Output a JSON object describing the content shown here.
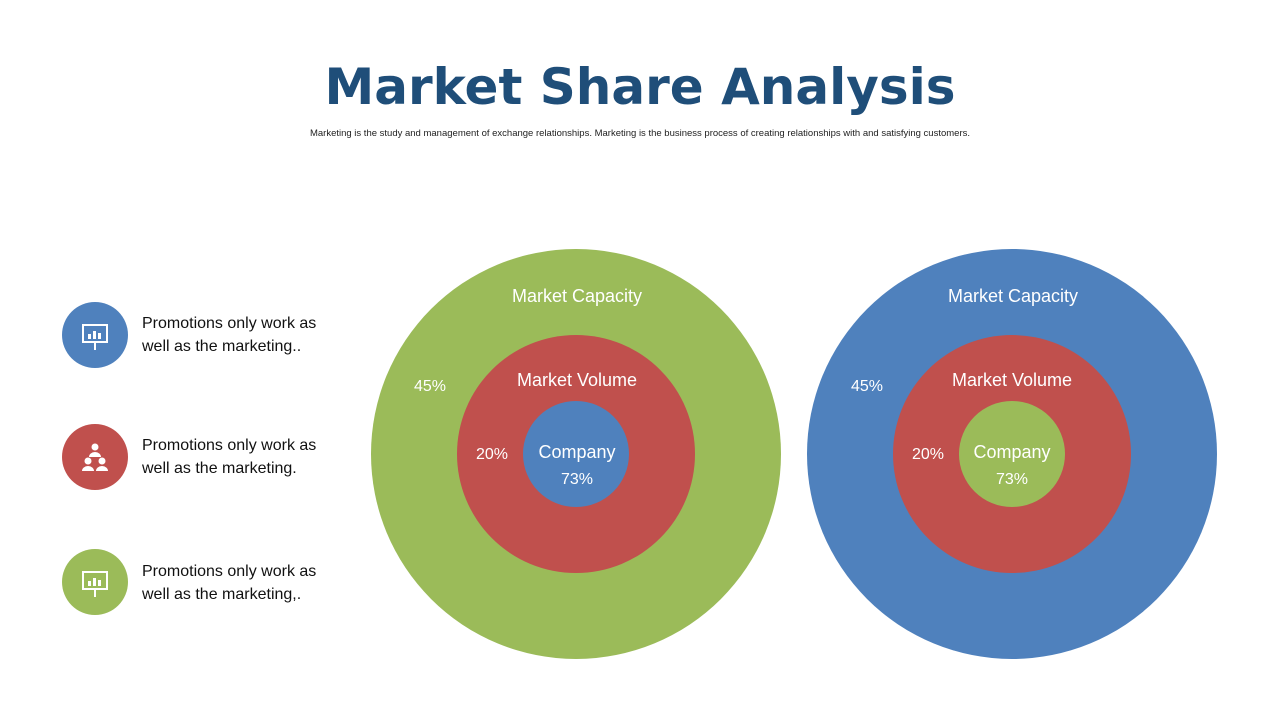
{
  "header": {
    "title": "Market Share Analysis",
    "subtitle": "Marketing is the study and management of exchange relationships. Marketing is the  business process of creating relationships with and satisfying customers."
  },
  "items": [
    {
      "text": "Promotions only work as well as the marketing.."
    },
    {
      "text": "Promotions only work as well as the marketing."
    },
    {
      "text": "Promotions only work as well as the marketing,."
    }
  ],
  "diagrams": [
    {
      "outer": {
        "label": "Market Capacity",
        "value": "45%"
      },
      "middle": {
        "label": "Market Volume",
        "value": "20%"
      },
      "inner": {
        "label": "Company",
        "value": "73%"
      }
    },
    {
      "outer": {
        "label": "Market Capacity",
        "value": "45%"
      },
      "middle": {
        "label": "Market Volume",
        "value": "20%"
      },
      "inner": {
        "label": "Company",
        "value": "73%"
      }
    }
  ]
}
